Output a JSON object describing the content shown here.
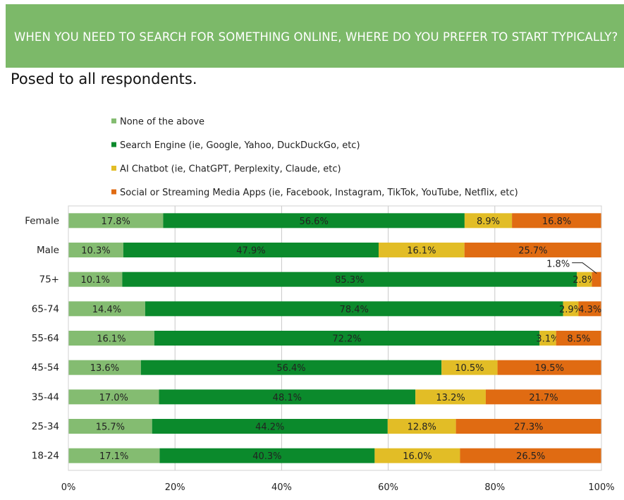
{
  "header": {
    "question": "WHEN YOU NEED TO SEARCH FOR SOMETHING ONLINE, WHERE DO YOU PREFER TO START TYPICALLY?"
  },
  "subtitle": "Posed to all respondents.",
  "chart_data": {
    "type": "bar",
    "orientation": "horizontal",
    "stacked": true,
    "title": "",
    "xlabel": "",
    "ylabel": "",
    "xlim": [
      0,
      100
    ],
    "x_ticks": [
      "0%",
      "20%",
      "40%",
      "60%",
      "80%",
      "100%"
    ],
    "grid": true,
    "legend_position": "top",
    "categories": [
      "Female",
      "Male",
      "75+",
      "65-74",
      "55-64",
      "45-54",
      "35-44",
      "25-34",
      "18-24"
    ],
    "series": [
      {
        "name": "None of the above",
        "color": "#84bc71",
        "values": [
          17.8,
          10.3,
          10.1,
          14.4,
          16.1,
          13.6,
          17.0,
          15.7,
          17.1
        ],
        "labels": [
          "17.8%",
          "10.3%",
          "10.1%",
          "14.4%",
          "16.1%",
          "13.6%",
          "17.0%",
          "15.7%",
          "17.1%"
        ]
      },
      {
        "name": "Search Engine (ie, Google, Yahoo, DuckDuckGo, etc)",
        "color": "#0b8a2c",
        "values": [
          56.6,
          47.9,
          85.3,
          78.4,
          72.2,
          56.4,
          48.1,
          44.2,
          40.3
        ],
        "labels": [
          "56.6%",
          "47.9%",
          "85.3%",
          "78.4%",
          "72.2%",
          "56.4%",
          "48.1%",
          "44.2%",
          "40.3%"
        ]
      },
      {
        "name": "AI Chatbot (ie, ChatGPT, Perplexity, Claude, etc)",
        "color": "#e2bd26",
        "values": [
          8.9,
          16.1,
          2.8,
          2.9,
          3.1,
          10.5,
          13.2,
          12.8,
          16.0
        ],
        "labels": [
          "8.9%",
          "16.1%",
          "2.8%",
          "2.9%",
          "3.1%",
          "10.5%",
          "13.2%",
          "12.8%",
          "16.0%"
        ]
      },
      {
        "name": "Social or Streaming Media Apps (ie, Facebook, Instagram, TikTok, YouTube, Netflix, etc)",
        "color": "#e06b12",
        "values": [
          16.8,
          25.7,
          1.8,
          4.3,
          8.5,
          19.5,
          21.7,
          27.3,
          26.5
        ],
        "labels": [
          "16.8%",
          "25.7%",
          "1.8%",
          "4.3%",
          "8.5%",
          "19.5%",
          "21.7%",
          "27.3%",
          "26.5%"
        ]
      }
    ]
  }
}
